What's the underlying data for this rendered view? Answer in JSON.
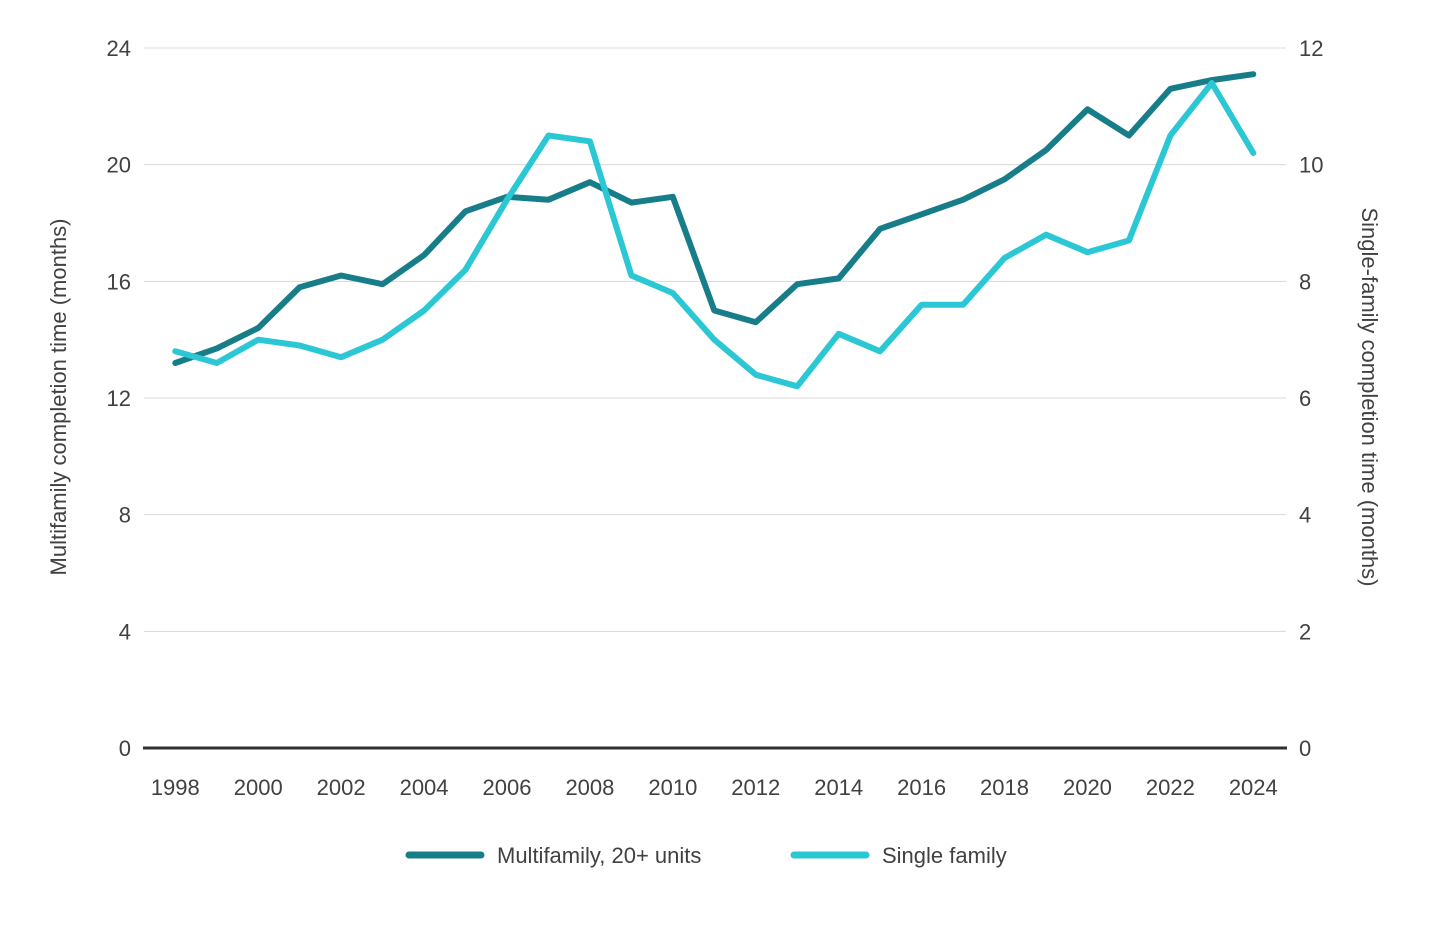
{
  "chart_data": {
    "type": "line",
    "title": "",
    "x": [
      1998,
      1999,
      2000,
      2001,
      2002,
      2003,
      2004,
      2005,
      2006,
      2007,
      2008,
      2009,
      2010,
      2011,
      2012,
      2013,
      2014,
      2015,
      2016,
      2017,
      2018,
      2019,
      2020,
      2021,
      2022,
      2023,
      2024
    ],
    "x_tick_labels": [
      "1998",
      "2000",
      "2002",
      "2004",
      "2006",
      "2008",
      "2010",
      "2012",
      "2014",
      "2016",
      "2018",
      "2020",
      "2022",
      "2024"
    ],
    "left_axis": {
      "label": "Multifamily completion time (months)",
      "ticks": [
        0,
        4,
        8,
        12,
        16,
        20,
        24
      ],
      "range": [
        0,
        24
      ]
    },
    "right_axis": {
      "label": "Single-family completion time (months)",
      "ticks": [
        0,
        2,
        4,
        6,
        8,
        10,
        12
      ],
      "range": [
        0,
        12
      ]
    },
    "grid": "horizontal-only",
    "legend_position": "bottom",
    "series": [
      {
        "name": "Multifamily, 20+ units",
        "axis": "left",
        "color": "#177E89",
        "values": [
          13.2,
          13.7,
          14.4,
          15.8,
          16.2,
          15.9,
          16.9,
          18.4,
          18.9,
          18.8,
          19.4,
          18.7,
          18.9,
          15.0,
          14.6,
          15.9,
          16.1,
          17.8,
          18.3,
          18.8,
          19.5,
          20.5,
          21.9,
          21.0,
          22.6,
          22.9,
          23.1
        ]
      },
      {
        "name": "Single family",
        "axis": "right",
        "color": "#2CC7D4",
        "values": [
          6.8,
          6.6,
          7.0,
          6.9,
          6.7,
          7.0,
          7.5,
          8.2,
          9.4,
          10.5,
          10.4,
          8.1,
          7.8,
          7.0,
          6.4,
          6.2,
          7.1,
          6.8,
          7.6,
          7.6,
          8.4,
          8.8,
          8.5,
          8.7,
          10.5,
          11.4,
          10.2
        ]
      }
    ],
    "grid_color": "#D8D8D8",
    "baseline_color": "#303030",
    "text_color": "#414042"
  }
}
